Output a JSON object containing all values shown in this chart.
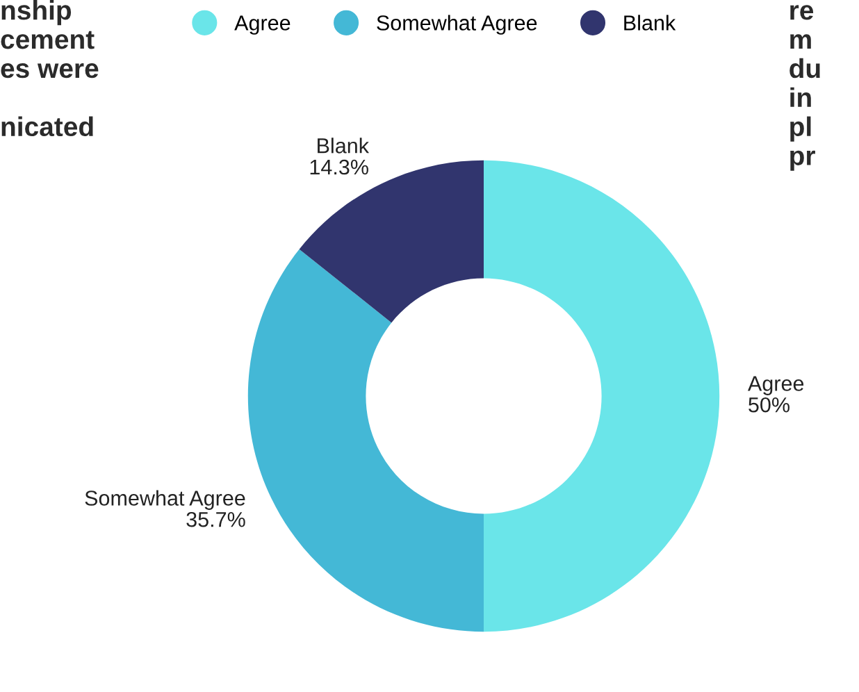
{
  "chart_data": {
    "type": "donut",
    "categories": [
      "Agree",
      "Somewhat Agree",
      "Blank"
    ],
    "values": [
      50,
      35.7,
      14.3
    ],
    "colors": [
      "#6ae5e9",
      "#44b8d6",
      "#31356e"
    ],
    "value_labels": [
      "50%",
      "35.7%",
      "14.3%"
    ],
    "legend": "top",
    "annotations": [
      "nship\ncement\nes were\n\nnicated",
      "re\nm\ndu\nin\npl\npr"
    ]
  }
}
